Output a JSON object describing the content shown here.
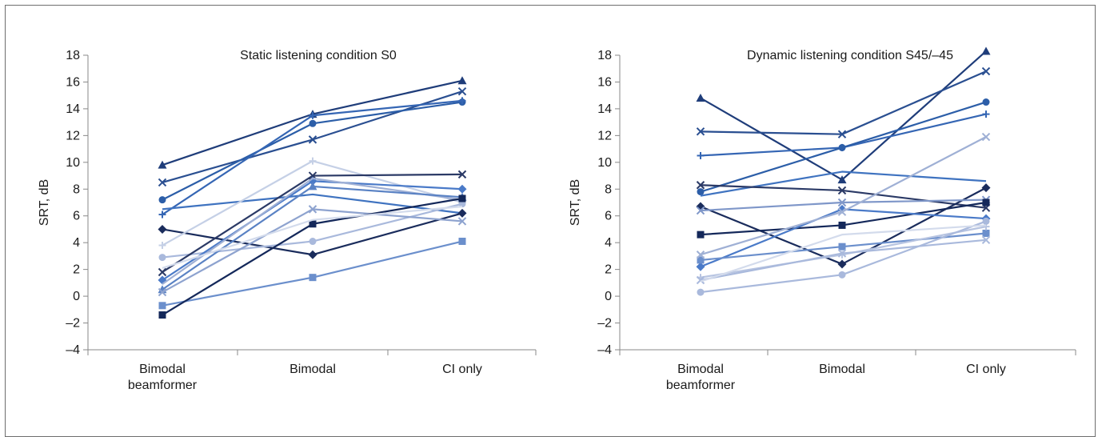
{
  "chart_data": [
    {
      "type": "line",
      "title": "Static listening condition S0",
      "xlabel": "",
      "ylabel": "SRT, dB",
      "ylim": [
        -4,
        18
      ],
      "yticks": [
        -4,
        -2,
        0,
        2,
        4,
        6,
        8,
        10,
        12,
        14,
        16,
        18
      ],
      "ytick_labels": [
        "–4",
        "–2",
        "0",
        "2",
        "4",
        "6",
        "8",
        "10",
        "12",
        "14",
        "16",
        "18"
      ],
      "categories": [
        [
          "Bimodal",
          "beamformer"
        ],
        [
          "Bimodal"
        ],
        [
          "CI only"
        ]
      ],
      "grid": false,
      "legend": "none",
      "series": [
        {
          "values": [
            9.8,
            13.6,
            16.1
          ],
          "color": "#1f3d7a",
          "marker": "triangle"
        },
        {
          "values": [
            8.5,
            11.7,
            15.3
          ],
          "color": "#2a4f91",
          "marker": "x"
        },
        {
          "values": [
            7.2,
            12.9,
            14.5
          ],
          "color": "#2c5ea8",
          "marker": "circle"
        },
        {
          "values": [
            6.1,
            13.5,
            14.6
          ],
          "color": "#3566b4",
          "marker": "plus"
        },
        {
          "values": [
            6.5,
            7.6,
            6.2
          ],
          "color": "#3f73c0",
          "marker": "none"
        },
        {
          "values": [
            5.0,
            3.1,
            6.2
          ],
          "color": "#1a2c5c",
          "marker": "diamond"
        },
        {
          "values": [
            3.8,
            10.1,
            7.0
          ],
          "color": "#c5d0e6",
          "marker": "plus"
        },
        {
          "values": [
            2.9,
            4.1,
            6.9
          ],
          "color": "#a9b9dc",
          "marker": "circle"
        },
        {
          "values": [
            1.8,
            9.0,
            9.1
          ],
          "color": "#2b3a66",
          "marker": "x"
        },
        {
          "values": [
            1.2,
            8.6,
            8.0
          ],
          "color": "#4a7ac8",
          "marker": "diamond"
        },
        {
          "values": [
            0.9,
            8.8,
            7.2
          ],
          "color": "#9fb0d5",
          "marker": "none"
        },
        {
          "values": [
            0.5,
            8.2,
            7.4
          ],
          "color": "#5a82c4",
          "marker": "triangle"
        },
        {
          "values": [
            0.3,
            6.5,
            5.6
          ],
          "color": "#8ea3cf",
          "marker": "x"
        },
        {
          "values": [
            -0.7,
            1.4,
            4.1
          ],
          "color": "#6b8fcc",
          "marker": "square"
        },
        {
          "values": [
            -1.4,
            5.4,
            7.3
          ],
          "color": "#14285a",
          "marker": "square"
        },
        {
          "values": [
            2.1,
            5.7,
            6.7
          ],
          "color": "#d3dbec",
          "marker": "none"
        }
      ]
    },
    {
      "type": "line",
      "title": "Dynamic listening condition S45/–45",
      "xlabel": "",
      "ylabel": "SRT, dB",
      "ylim": [
        -4,
        18
      ],
      "yticks": [
        -4,
        -2,
        0,
        2,
        4,
        6,
        8,
        10,
        12,
        14,
        16,
        18
      ],
      "ytick_labels": [
        "–4",
        "–2",
        "0",
        "2",
        "4",
        "6",
        "8",
        "10",
        "12",
        "14",
        "16",
        "18"
      ],
      "categories": [
        [
          "Bimodal",
          "beamformer"
        ],
        [
          "Bimodal"
        ],
        [
          "CI only"
        ]
      ],
      "grid": false,
      "legend": "none",
      "series": [
        {
          "values": [
            14.8,
            8.7,
            18.3
          ],
          "color": "#1f3d7a",
          "marker": "triangle"
        },
        {
          "values": [
            12.3,
            12.1,
            16.8
          ],
          "color": "#2a4f91",
          "marker": "x"
        },
        {
          "values": [
            10.5,
            11.1,
            13.6
          ],
          "color": "#3566b4",
          "marker": "plus"
        },
        {
          "values": [
            7.8,
            11.1,
            14.5
          ],
          "color": "#2c5ea8",
          "marker": "circle"
        },
        {
          "values": [
            7.5,
            9.3,
            8.6
          ],
          "color": "#3f73c0",
          "marker": "none"
        },
        {
          "values": [
            8.3,
            7.9,
            6.6
          ],
          "color": "#2b3a66",
          "marker": "x"
        },
        {
          "values": [
            6.7,
            2.4,
            8.1
          ],
          "color": "#1a2c5c",
          "marker": "diamond"
        },
        {
          "values": [
            6.4,
            7.0,
            7.2
          ],
          "color": "#7f97c9",
          "marker": "x"
        },
        {
          "values": [
            4.6,
            5.3,
            7.0
          ],
          "color": "#14285a",
          "marker": "square"
        },
        {
          "values": [
            2.2,
            6.5,
            5.8
          ],
          "color": "#4a7ac8",
          "marker": "diamond"
        },
        {
          "values": [
            2.7,
            3.7,
            4.7
          ],
          "color": "#6b8fcc",
          "marker": "square"
        },
        {
          "values": [
            3.1,
            6.3,
            11.9
          ],
          "color": "#9fb0d5",
          "marker": "x"
        },
        {
          "values": [
            1.4,
            3.1,
            5.2
          ],
          "color": "#b7c4e1",
          "marker": "plus"
        },
        {
          "values": [
            1.2,
            3.2,
            4.2
          ],
          "color": "#a9b9dc",
          "marker": "x"
        },
        {
          "values": [
            0.3,
            1.6,
            5.6
          ],
          "color": "#a9b9dc",
          "marker": "circle"
        },
        {
          "values": [
            1.1,
            4.6,
            5.3
          ],
          "color": "#d3dbec",
          "marker": "none"
        }
      ]
    }
  ]
}
